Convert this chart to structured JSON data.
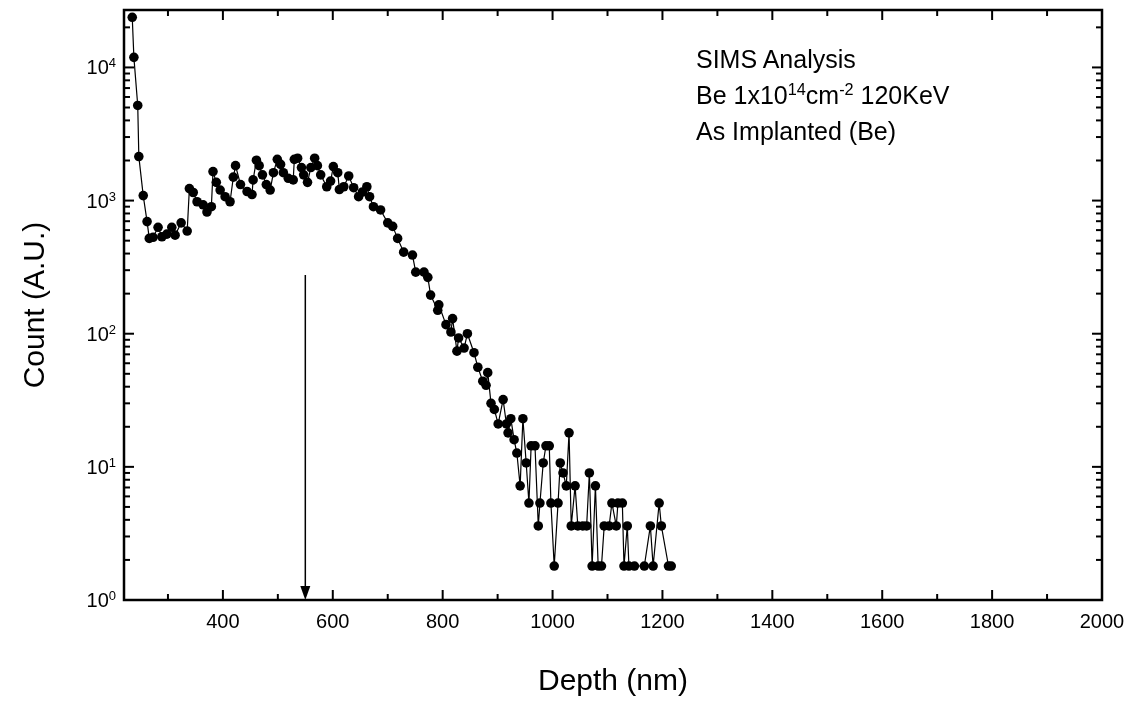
{
  "chart_data": {
    "type": "line",
    "xlabel": "Depth (nm)",
    "ylabel": "Count (A.U.)",
    "annotations": [
      "SIMS Analysis",
      "Be 1x10$^{14}$cm$^{-2}$ 120KeV",
      "As Implanted (Be)"
    ],
    "marker": "circle",
    "line_style": "solid",
    "grid": false,
    "log": "y",
    "xlim": [
      220,
      2000
    ],
    "ylim": [
      1,
      27000
    ],
    "xticks": [
      {
        "value": 300,
        "label": null
      },
      400,
      {
        "value": 500,
        "label": null
      },
      600,
      {
        "value": 700,
        "label": null
      },
      800,
      {
        "value": 900,
        "label": null
      },
      1000,
      {
        "value": 1100,
        "label": null
      },
      1200,
      {
        "value": 1300,
        "label": null
      },
      1400,
      {
        "value": 1500,
        "label": null
      },
      1600,
      {
        "value": 1700,
        "label": null
      },
      1800,
      {
        "value": 1900,
        "label": null
      },
      2000
    ],
    "yticks": [
      {
        "value": 1,
        "label": "10$^{0}$"
      },
      {
        "value": 2,
        "label": null
      },
      {
        "value": 3,
        "label": null
      },
      {
        "value": 4,
        "label": null
      },
      {
        "value": 5,
        "label": null
      },
      {
        "value": 6,
        "label": null
      },
      {
        "value": 7,
        "label": null
      },
      {
        "value": 8,
        "label": null
      },
      {
        "value": 9,
        "label": null
      },
      {
        "value": 10,
        "label": "10$^{1}$"
      },
      {
        "value": 20,
        "label": null
      },
      {
        "value": 30,
        "label": null
      },
      {
        "value": 40,
        "label": null
      },
      {
        "value": 50,
        "label": null
      },
      {
        "value": 60,
        "label": null
      },
      {
        "value": 70,
        "label": null
      },
      {
        "value": 80,
        "label": null
      },
      {
        "value": 90,
        "label": null
      },
      {
        "value": 100,
        "label": "10$^{2}$"
      },
      {
        "value": 200,
        "label": null
      },
      {
        "value": 300,
        "label": null
      },
      {
        "value": 400,
        "label": null
      },
      {
        "value": 500,
        "label": null
      },
      {
        "value": 600,
        "label": null
      },
      {
        "value": 700,
        "label": null
      },
      {
        "value": 800,
        "label": null
      },
      {
        "value": 900,
        "label": null
      },
      {
        "value": 1000,
        "label": "10$^{3}$"
      },
      {
        "value": 2000,
        "label": null
      },
      {
        "value": 3000,
        "label": null
      },
      {
        "value": 4000,
        "label": null
      },
      {
        "value": 5000,
        "label": null
      },
      {
        "value": 6000,
        "label": null
      },
      {
        "value": 7000,
        "label": null
      },
      {
        "value": 8000,
        "label": null
      },
      {
        "value": 9000,
        "label": null
      },
      {
        "value": 10000,
        "label": "10$^{4}$"
      },
      {
        "value": 20000,
        "label": null
      }
    ],
    "ref_lines": [
      {
        "axis": "x",
        "value": 550,
        "color": "#000000"
      }
    ],
    "series": [
      {
        "color": "#000000",
        "x": [
          235,
          238,
          245,
          247,
          255,
          262,
          266,
          273,
          282,
          289,
          298,
          307,
          313,
          324,
          335,
          339,
          346,
          353,
          364,
          371,
          379,
          382,
          388,
          395,
          404,
          413,
          419,
          423,
          432,
          444,
          453,
          455,
          461,
          466,
          472,
          479,
          486,
          492,
          499,
          505,
          510,
          519,
          528,
          530,
          536,
          543,
          547,
          554,
          560,
          567,
          572,
          578,
          589,
          596,
          601,
          609,
          612,
          620,
          629,
          638,
          647,
          654,
          662,
          667,
          674,
          687,
          700,
          709,
          718,
          729,
          745,
          751,
          766,
          773,
          778,
          791,
          793,
          806,
          815,
          818,
          826,
          829,
          839,
          845,
          857,
          864,
          873,
          879,
          882,
          888,
          894,
          901,
          910,
          916,
          919,
          924,
          930,
          935,
          941,
          946,
          952,
          957,
          961,
          968,
          974,
          977,
          983,
          988,
          994,
          997,
          1003,
          1010,
          1014,
          1019,
          1025,
          1030,
          1034,
          1041,
          1046,
          1055,
          1062,
          1067,
          1072,
          1078,
          1083,
          1089,
          1094,
          1103,
          1108,
          1116,
          1119,
          1127,
          1130,
          1136,
          1139,
          1149,
          1167,
          1178,
          1183,
          1194,
          1198,
          1211,
          1216
        ],
        "values": [
          23800,
          11900,
          5180,
          2140,
          1090,
          695,
          520,
          530,
          630,
          535,
          560,
          630,
          550,
          680,
          590,
          1230,
          1150,
          980,
          930,
          820,
          900,
          1650,
          1370,
          1200,
          1070,
          980,
          1500,
          1830,
          1320,
          1170,
          1110,
          1430,
          2010,
          1830,
          1560,
          1320,
          1200,
          1620,
          2040,
          1870,
          1620,
          1470,
          1430,
          2040,
          2080,
          1770,
          1560,
          1370,
          1770,
          2080,
          1830,
          1560,
          1270,
          1400,
          1800,
          1620,
          1210,
          1270,
          1530,
          1250,
          1070,
          1160,
          1270,
          1070,
          900,
          850,
          680,
          640,
          520,
          410,
          390,
          290,
          290,
          265,
          195,
          150,
          165,
          117,
          103,
          130,
          74,
          93,
          78,
          100,
          72,
          56,
          44,
          41,
          51,
          30,
          27,
          21,
          32,
          21,
          18,
          23,
          16,
          12.7,
          7.2,
          23,
          10.7,
          5.35,
          14.4,
          14.4,
          3.6,
          5.35,
          10.7,
          14.4,
          14.4,
          5.35,
          1.8,
          5.35,
          10.7,
          9,
          7.2,
          18,
          3.6,
          7.2,
          3.6,
          3.6,
          3.6,
          9,
          1.8,
          7.2,
          1.8,
          1.8,
          3.6,
          3.6,
          5.35,
          3.6,
          5.35,
          5.35,
          1.8,
          3.6,
          1.8,
          1.8,
          1.8,
          3.6,
          1.8,
          5.35,
          3.6,
          1.8,
          1.8
        ]
      }
    ]
  }
}
